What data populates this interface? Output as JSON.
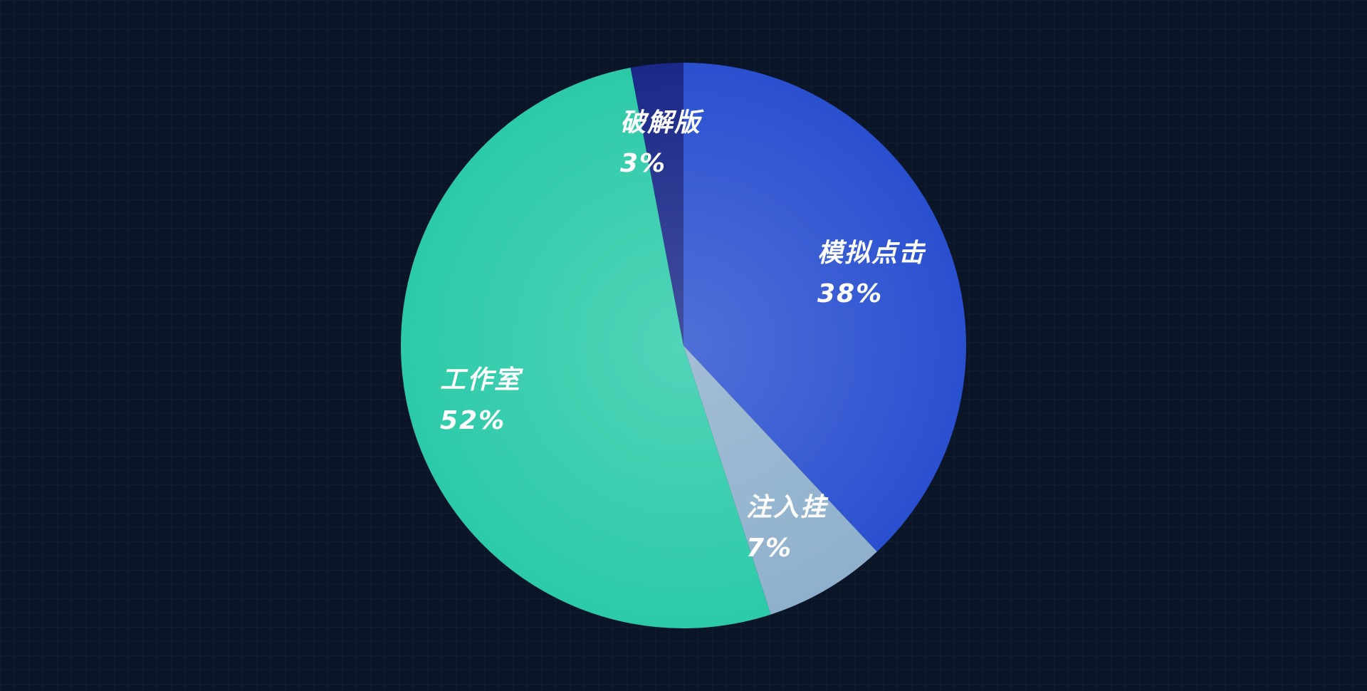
{
  "chart_data": {
    "type": "pie",
    "categories": [
      "模拟点击",
      "注入挂",
      "工作室",
      "破解版"
    ],
    "values": [
      38,
      7,
      52,
      3
    ],
    "value_labels": [
      "38%",
      "7%",
      "52%",
      "3%"
    ],
    "colors": [
      "#2a50d0",
      "#8fb0cc",
      "#2ccaa8",
      "#1a2888"
    ]
  }
}
